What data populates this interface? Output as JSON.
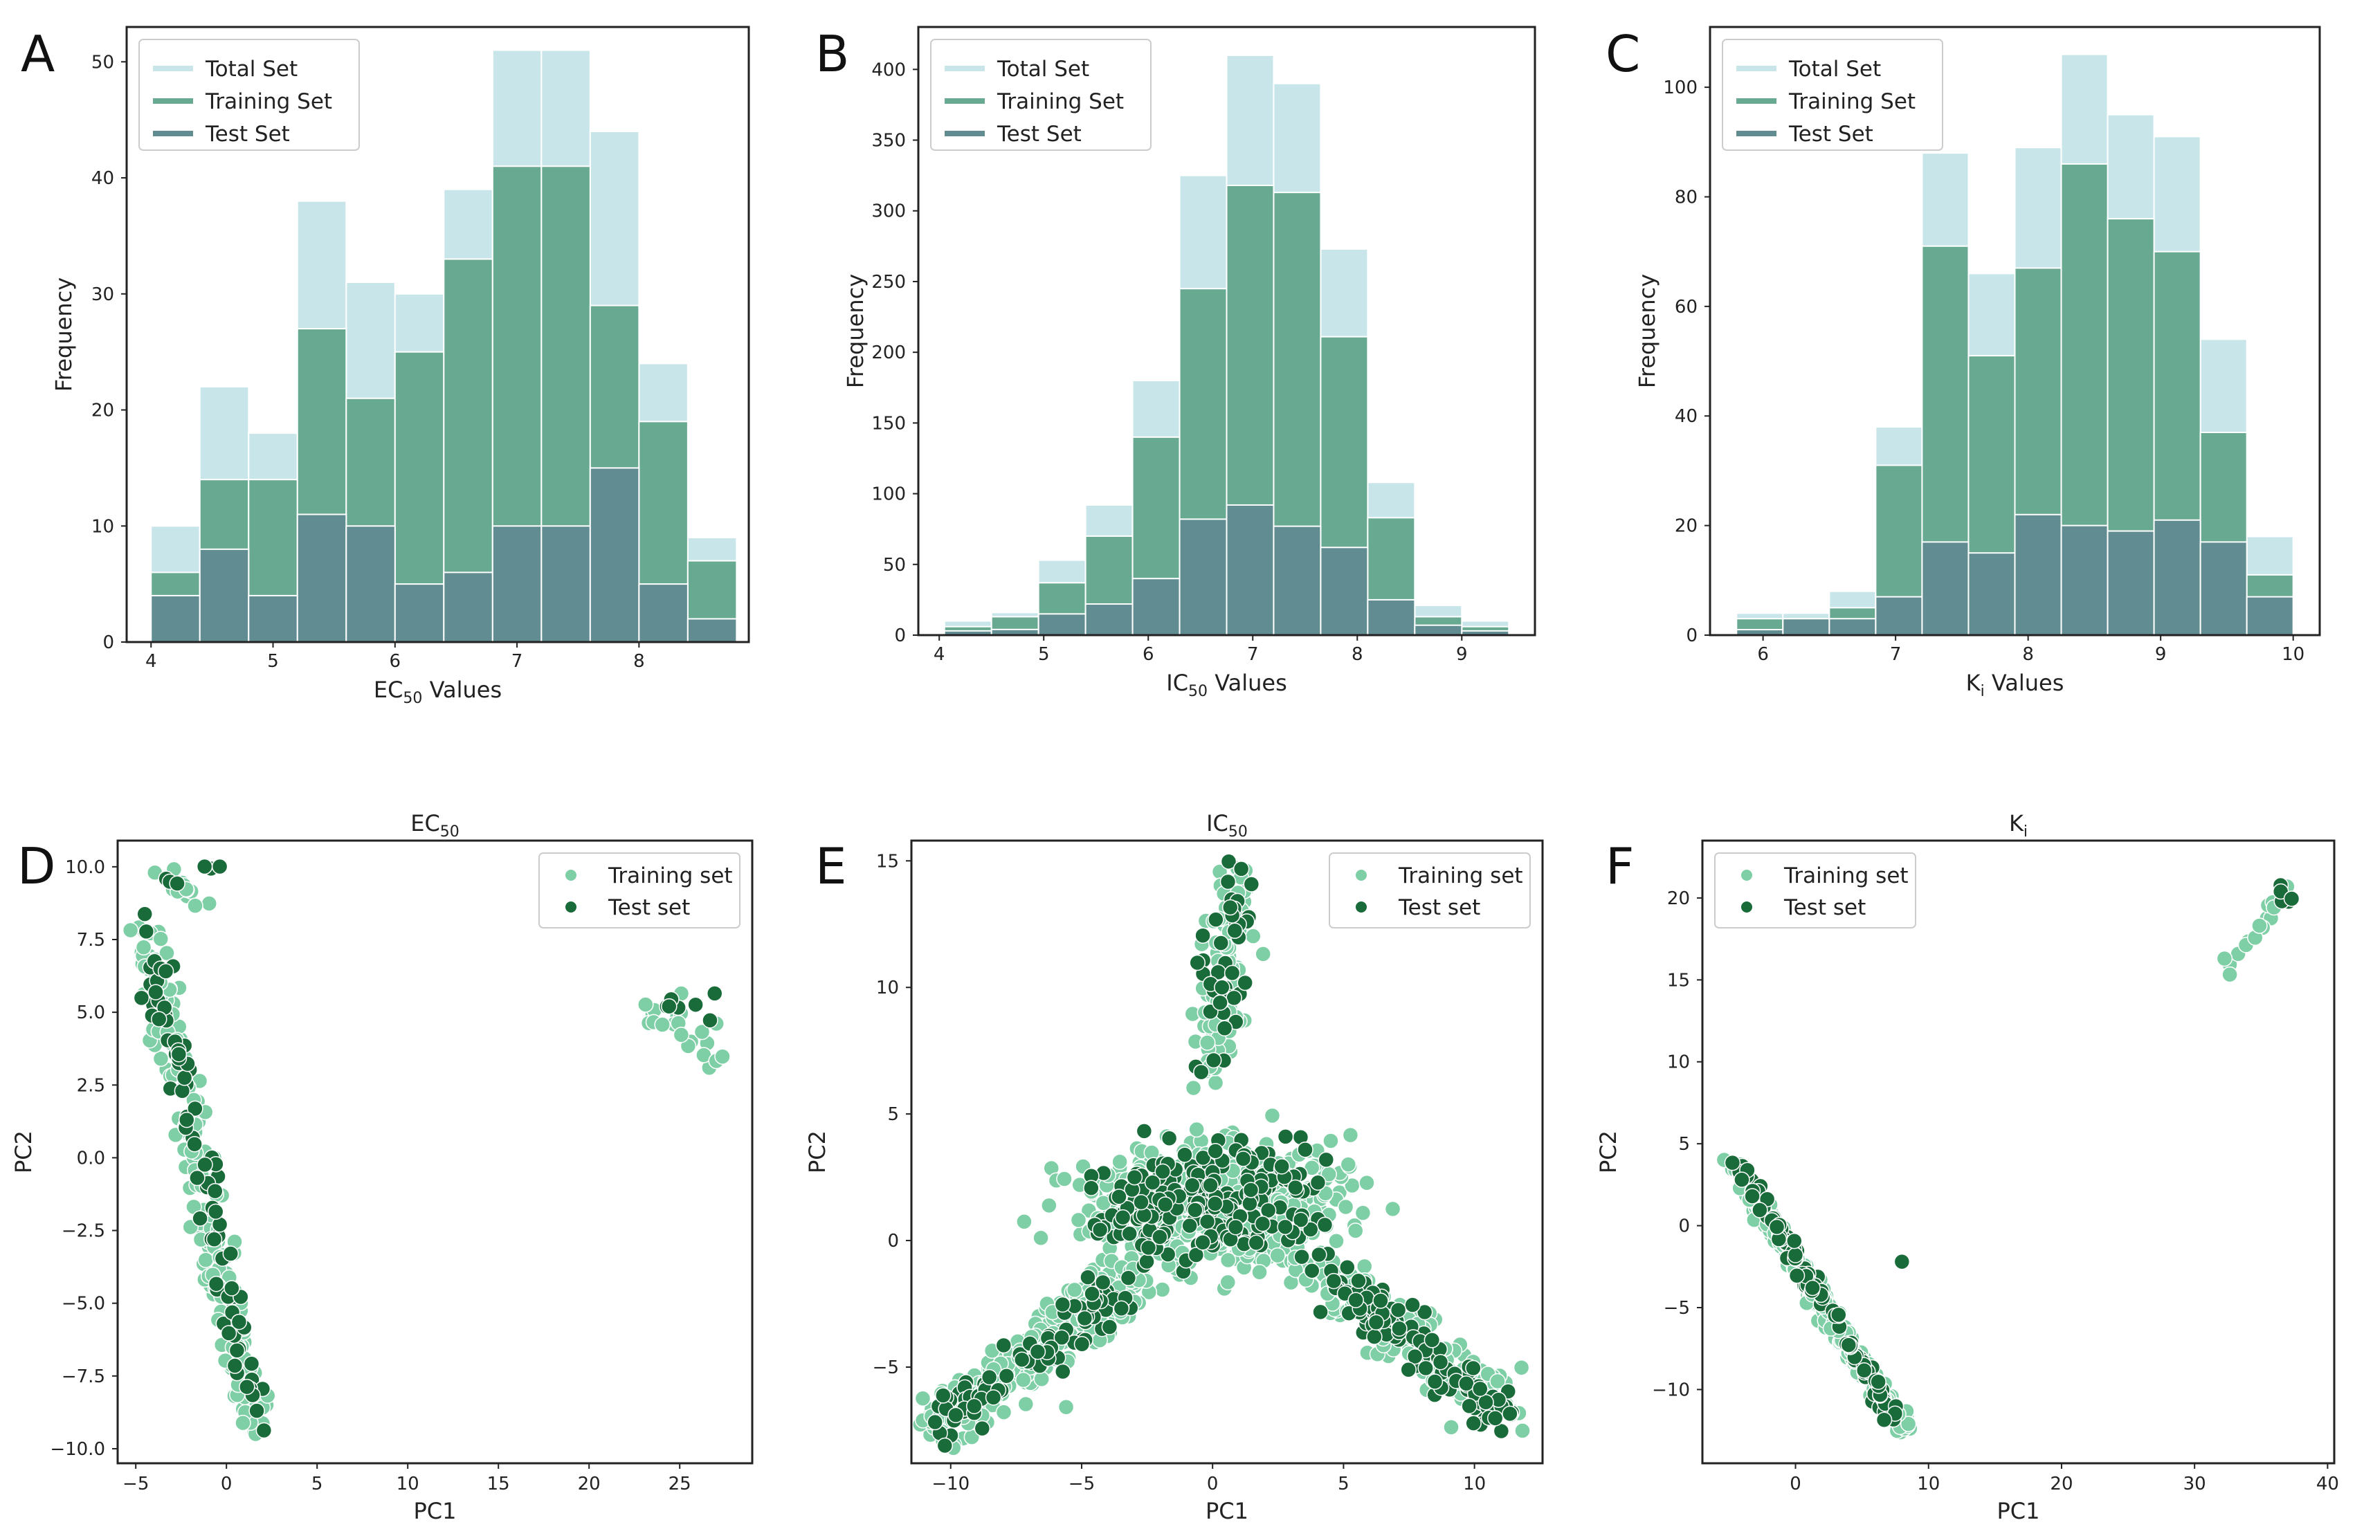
{
  "panels": [
    "A",
    "B",
    "C",
    "D",
    "E",
    "F"
  ],
  "colors": {
    "total": "#c8e6ea",
    "training": "#67a991",
    "test": "#618d92",
    "train_dot": "#7fcfa6",
    "test_dot": "#1a6b3a"
  },
  "chart_data": [
    {
      "panel": "A",
      "type": "bar",
      "subtype": "overlaid-histogram",
      "xlabel": "EC",
      "xlabel_sub": "50",
      "xlabel_suffix": " Values",
      "ylabel": "Frequency",
      "xlim": [
        3.8,
        8.9
      ],
      "ylim": [
        0,
        53
      ],
      "xticks": [
        4,
        5,
        6,
        7,
        8
      ],
      "yticks": [
        0,
        10,
        20,
        30,
        40,
        50
      ],
      "bin_start": 4.0,
      "bin_width": 0.4,
      "series": [
        {
          "name": "Total Set",
          "values": [
            10,
            22,
            18,
            38,
            31,
            30,
            39,
            51,
            51,
            44,
            24,
            9
          ]
        },
        {
          "name": "Training Set",
          "values": [
            6,
            14,
            14,
            27,
            21,
            25,
            33,
            41,
            41,
            29,
            19,
            7
          ]
        },
        {
          "name": "Test Set",
          "values": [
            4,
            8,
            4,
            11,
            10,
            5,
            6,
            10,
            10,
            15,
            5,
            2
          ]
        }
      ],
      "legend": [
        "Total Set",
        "Training Set",
        "Test Set"
      ]
    },
    {
      "panel": "B",
      "type": "bar",
      "subtype": "overlaid-histogram",
      "xlabel": "IC",
      "xlabel_sub": "50",
      "xlabel_suffix": " Values",
      "ylabel": "Frequency",
      "xlim": [
        3.8,
        9.7
      ],
      "ylim": [
        0,
        430
      ],
      "xticks": [
        4,
        5,
        6,
        7,
        8,
        9
      ],
      "yticks": [
        0,
        50,
        100,
        150,
        200,
        250,
        300,
        350,
        400
      ],
      "bin_start": 4.05,
      "bin_width": 0.45,
      "series": [
        {
          "name": "Total Set",
          "values": [
            10,
            16,
            53,
            92,
            180,
            325,
            410,
            390,
            273,
            108,
            21,
            10
          ]
        },
        {
          "name": "Training Set",
          "values": [
            6,
            13,
            37,
            70,
            140,
            245,
            318,
            313,
            211,
            83,
            13,
            6
          ]
        },
        {
          "name": "Test Set",
          "values": [
            3,
            4,
            15,
            22,
            40,
            82,
            92,
            77,
            62,
            25,
            7,
            3
          ]
        }
      ],
      "legend": [
        "Total Set",
        "Training Set",
        "Test Set"
      ]
    },
    {
      "panel": "C",
      "type": "bar",
      "subtype": "overlaid-histogram",
      "xlabel": "K",
      "xlabel_sub": "i",
      "xlabel_suffix": " Values",
      "ylabel": "Frequency",
      "xlim": [
        5.6,
        10.2
      ],
      "ylim": [
        0,
        111
      ],
      "xticks": [
        6,
        7,
        8,
        9,
        10
      ],
      "yticks": [
        0,
        20,
        40,
        60,
        80,
        100
      ],
      "bin_start": 5.8,
      "bin_width": 0.35,
      "series": [
        {
          "name": "Total Set",
          "values": [
            4,
            4,
            8,
            38,
            88,
            66,
            89,
            106,
            95,
            91,
            54,
            18
          ]
        },
        {
          "name": "Training Set",
          "values": [
            3,
            3,
            5,
            31,
            71,
            51,
            67,
            86,
            76,
            70,
            37,
            11
          ]
        },
        {
          "name": "Test Set",
          "values": [
            1,
            3,
            3,
            7,
            17,
            15,
            22,
            20,
            19,
            21,
            17,
            7
          ]
        }
      ],
      "legend": [
        "Total Set",
        "Training Set",
        "Test Set"
      ]
    },
    {
      "panel": "D",
      "type": "scatter",
      "title": "EC",
      "title_sub": "50",
      "xlabel": "PC1",
      "ylabel": "PC2",
      "xlim": [
        -6,
        29
      ],
      "ylim": [
        -10.5,
        10.9
      ],
      "xticks": [
        -5,
        0,
        5,
        10,
        15,
        20,
        25
      ],
      "yticks": [
        -10.0,
        -7.5,
        -5.0,
        -2.5,
        0.0,
        2.5,
        5.0,
        7.5,
        10.0
      ],
      "ytick_labels": [
        "−10.0",
        "−7.5",
        "−5.0",
        "−2.5",
        "0.0",
        "2.5",
        "5.0",
        "7.5",
        "10.0"
      ],
      "xtick_labels": [
        "−5",
        "0",
        "5",
        "10",
        "15",
        "20",
        "25"
      ],
      "legend": [
        "Training set",
        "Test set"
      ],
      "series": [
        {
          "name": "Training set",
          "clusters": [
            {
              "label": "main-band",
              "from": [
                -4.3,
                8.0
              ],
              "to": [
                1.5,
                -9.3
              ],
              "spread": 0.9,
              "count": 190
            },
            {
              "label": "top-arm",
              "from": [
                -3.8,
                10.0
              ],
              "to": [
                -1.3,
                8.6
              ],
              "spread": 0.5,
              "count": 18
            },
            {
              "label": "right-cluster",
              "from": [
                23.0,
                5.2
              ],
              "to": [
                27.4,
                3.5
              ],
              "spread": 0.8,
              "count": 22
            }
          ]
        },
        {
          "name": "Test set",
          "clusters": [
            {
              "label": "main-band",
              "from": [
                -4.3,
                7.5
              ],
              "to": [
                2.0,
                -9.4
              ],
              "spread": 0.8,
              "count": 80
            },
            {
              "label": "top-arm",
              "from": [
                -3.5,
                9.6
              ],
              "to": [
                0.0,
                10.1
              ],
              "spread": 0.3,
              "count": 6
            },
            {
              "label": "right-cluster",
              "from": [
                23.2,
                5.3
              ],
              "to": [
                27.0,
                5.2
              ],
              "spread": 0.4,
              "count": 7
            }
          ]
        }
      ]
    },
    {
      "panel": "E",
      "type": "scatter",
      "title": "IC",
      "title_sub": "50",
      "xlabel": "PC1",
      "ylabel": "PC2",
      "xlim": [
        -11.5,
        12.6
      ],
      "ylim": [
        -8.8,
        15.8
      ],
      "xticks": [
        -10,
        -5,
        0,
        5,
        10
      ],
      "yticks": [
        -5,
        0,
        5,
        10,
        15
      ],
      "xtick_labels": [
        "−10",
        "−5",
        "0",
        "5",
        "10"
      ],
      "ytick_labels": [
        "−5",
        "0",
        "5",
        "10",
        "15"
      ],
      "legend": [
        "Training set",
        "Test set"
      ],
      "series": [
        {
          "name": "Training set",
          "clusters": [
            {
              "label": "center",
              "from": [
                -4.0,
                1.5
              ],
              "to": [
                4.0,
                1.5
              ],
              "spread": 2.3,
              "count": 420
            },
            {
              "label": "left-arm",
              "from": [
                -10.5,
                -7.3
              ],
              "to": [
                -3.0,
                -1.5
              ],
              "spread": 1.0,
              "count": 300
            },
            {
              "label": "top-arm",
              "from": [
                0.2,
                6.5
              ],
              "to": [
                0.8,
                14.5
              ],
              "spread": 0.9,
              "count": 90
            },
            {
              "label": "right-arm",
              "from": [
                3.0,
                -0.5
              ],
              "to": [
                11.0,
                -6.5
              ],
              "spread": 1.0,
              "count": 220
            }
          ]
        },
        {
          "name": "Test set",
          "clusters": [
            {
              "label": "center",
              "from": [
                -3.0,
                1.5
              ],
              "to": [
                3.0,
                1.5
              ],
              "spread": 2.0,
              "count": 220
            },
            {
              "label": "left-arm",
              "from": [
                -10.2,
                -7.0
              ],
              "to": [
                -3.5,
                -2.0
              ],
              "spread": 0.9,
              "count": 90
            },
            {
              "label": "top-arm",
              "from": [
                0.0,
                7.0
              ],
              "to": [
                1.0,
                14.5
              ],
              "spread": 0.8,
              "count": 45
            },
            {
              "label": "right-arm",
              "from": [
                4.0,
                -1.0
              ],
              "to": [
                11.0,
                -7.0
              ],
              "spread": 0.9,
              "count": 110
            }
          ]
        }
      ]
    },
    {
      "panel": "F",
      "type": "scatter",
      "title": "K",
      "title_sub": "i",
      "xlabel": "PC1",
      "ylabel": "PC2",
      "xlim": [
        -7,
        40.5
      ],
      "ylim": [
        -14.5,
        23.5
      ],
      "xticks": [
        0,
        10,
        20,
        30,
        40
      ],
      "yticks": [
        -10,
        -5,
        0,
        5,
        10,
        15,
        20
      ],
      "xtick_labels": [
        "0",
        "10",
        "20",
        "30",
        "40"
      ],
      "ytick_labels": [
        "−10",
        "−5",
        "0",
        "5",
        "10",
        "15",
        "20"
      ],
      "legend": [
        "Training set",
        "Test set"
      ],
      "series": [
        {
          "name": "Training set",
          "clusters": [
            {
              "label": "diagonal",
              "from": [
                -4.8,
                3.8
              ],
              "to": [
                8.2,
                -12.5
              ],
              "spread": 0.6,
              "count": 230
            },
            {
              "label": "upper-right",
              "from": [
                32.0,
                15.5
              ],
              "to": [
                39.0,
                22.0
              ],
              "spread": 0.6,
              "count": 16
            }
          ]
        },
        {
          "name": "Test set",
          "clusters": [
            {
              "label": "diagonal",
              "from": [
                -4.5,
                4.0
              ],
              "to": [
                7.5,
                -11.8
              ],
              "spread": 0.5,
              "count": 110
            },
            {
              "label": "upper-right",
              "from": [
                36.0,
                20.5
              ],
              "to": [
                37.3,
                19.8
              ],
              "spread": 0.4,
              "count": 5
            },
            {
              "label": "outlier",
              "from": [
                8.0,
                -2.2
              ],
              "to": [
                8.0,
                -2.2
              ],
              "spread": 0.0,
              "count": 1
            }
          ]
        }
      ]
    }
  ]
}
